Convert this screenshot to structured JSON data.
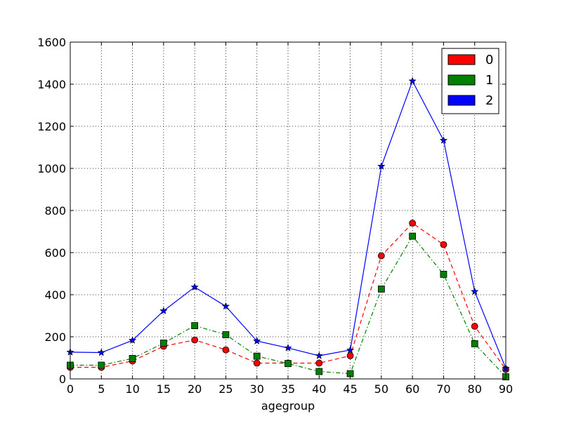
{
  "chart_data": {
    "type": "line",
    "title": "",
    "xlabel": "agegroup",
    "ylabel": "",
    "x_ticks": [
      "0",
      "5",
      "10",
      "15",
      "20",
      "25",
      "30",
      "35",
      "40",
      "45",
      "50",
      "60",
      "70",
      "80",
      "90"
    ],
    "y_ticks": [
      0,
      200,
      400,
      600,
      800,
      1000,
      1200,
      1400,
      1600
    ],
    "ylim": [
      0,
      1600
    ],
    "grid": true,
    "legend_position": "top-right",
    "series": [
      {
        "name": "0",
        "color": "#ff0000",
        "line_style": "dashed",
        "marker": "circle",
        "values": [
          55,
          55,
          85,
          155,
          185,
          138,
          75,
          75,
          75,
          110,
          585,
          740,
          638,
          250,
          45
        ]
      },
      {
        "name": "1",
        "color": "#008000",
        "line_style": "dashdot",
        "marker": "square",
        "values": [
          65,
          65,
          97,
          170,
          253,
          210,
          108,
          73,
          35,
          25,
          427,
          678,
          497,
          167,
          10
        ]
      },
      {
        "name": "2",
        "color": "#0000ff",
        "line_style": "solid",
        "marker": "star",
        "values": [
          127,
          125,
          183,
          323,
          436,
          345,
          180,
          147,
          110,
          137,
          1010,
          1415,
          1133,
          415,
          50
        ]
      }
    ]
  }
}
